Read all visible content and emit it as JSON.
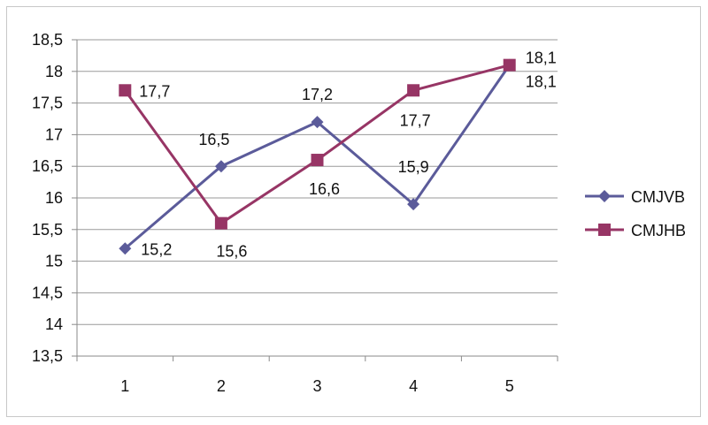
{
  "chart_data": {
    "type": "line",
    "title": "",
    "xlabel": "",
    "ylabel": "",
    "categories": [
      "1",
      "2",
      "3",
      "4",
      "5"
    ],
    "ylim": [
      13.5,
      18.5
    ],
    "y_ticks": [
      "18,5",
      "18",
      "17,5",
      "17",
      "16,5",
      "16",
      "15,5",
      "15",
      "14,5",
      "14",
      "13,5"
    ],
    "grid": true,
    "legend_position": "right",
    "series": [
      {
        "name": "CMJVB",
        "values": [
          15.2,
          16.5,
          17.2,
          15.9,
          18.1
        ],
        "labels": [
          "15,2",
          "16,5",
          "17,2",
          "15,9",
          "18,1"
        ],
        "color": "#5b5b9a",
        "marker": "diamond"
      },
      {
        "name": "CMJHB",
        "values": [
          17.7,
          15.6,
          16.6,
          17.7,
          18.1
        ],
        "labels": [
          "17,7",
          "15,6",
          "16,6",
          "17,7",
          "18,1"
        ],
        "color": "#973565",
        "marker": "square"
      }
    ]
  }
}
